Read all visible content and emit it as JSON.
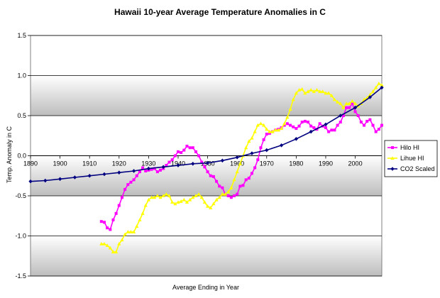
{
  "chart_data": {
    "type": "line",
    "title": "Hawaii 10-year Average Temperature Anomalies in C",
    "xlabel": "Average Ending in Year",
    "ylabel": "Temp. Anomaly in C",
    "xlim": [
      1890,
      2009
    ],
    "ylim": [
      -1.5,
      1.5
    ],
    "x_ticks": [
      "1890",
      "1900",
      "1910",
      "1920",
      "1930",
      "1940",
      "1950",
      "1960",
      "1970",
      "1980",
      "1990",
      "2000"
    ],
    "y_ticks": [
      "1.5",
      "1.0",
      "0.5",
      "0.0",
      "-0.5",
      "-1.0",
      "-1.5"
    ],
    "grid": "horizontal",
    "legend_position": "right",
    "series": [
      {
        "name": "Hilo HI",
        "color": "#ff00ff",
        "marker": "square",
        "x": [
          1914,
          1915,
          1916,
          1917,
          1918,
          1919,
          1920,
          1921,
          1922,
          1923,
          1924,
          1925,
          1926,
          1927,
          1928,
          1929,
          1930,
          1931,
          1932,
          1933,
          1934,
          1935,
          1936,
          1937,
          1938,
          1939,
          1940,
          1941,
          1942,
          1943,
          1944,
          1945,
          1946,
          1947,
          1948,
          1949,
          1950,
          1951,
          1952,
          1953,
          1954,
          1955,
          1956,
          1957,
          1958,
          1959,
          1960,
          1961,
          1962,
          1963,
          1964,
          1965,
          1966,
          1967,
          1968,
          1969,
          1970,
          1971,
          1972,
          1973,
          1974,
          1975,
          1976,
          1977,
          1978,
          1979,
          1980,
          1981,
          1982,
          1983,
          1984,
          1985,
          1986,
          1987,
          1988,
          1989,
          1990,
          1991,
          1992,
          1993,
          1994,
          1995,
          1996,
          1997,
          1998,
          1999,
          2000,
          2001,
          2002,
          2003,
          2004,
          2005,
          2006,
          2007,
          2008,
          2009
        ],
        "values": [
          -0.82,
          -0.83,
          -0.9,
          -0.92,
          -0.8,
          -0.72,
          -0.62,
          -0.52,
          -0.42,
          -0.36,
          -0.33,
          -0.3,
          -0.25,
          -0.2,
          -0.15,
          -0.19,
          -0.18,
          -0.17,
          -0.16,
          -0.2,
          -0.18,
          -0.16,
          -0.12,
          -0.08,
          -0.05,
          0.0,
          0.05,
          0.04,
          0.07,
          0.12,
          0.1,
          0.1,
          0.05,
          0.0,
          -0.08,
          -0.14,
          -0.2,
          -0.25,
          -0.26,
          -0.32,
          -0.38,
          -0.4,
          -0.48,
          -0.5,
          -0.52,
          -0.5,
          -0.48,
          -0.38,
          -0.37,
          -0.3,
          -0.28,
          -0.22,
          -0.15,
          -0.05,
          0.1,
          0.2,
          0.27,
          0.28,
          0.3,
          0.32,
          0.33,
          0.35,
          0.38,
          0.4,
          0.38,
          0.36,
          0.34,
          0.37,
          0.42,
          0.43,
          0.42,
          0.37,
          0.35,
          0.33,
          0.4,
          0.37,
          0.35,
          0.3,
          0.32,
          0.32,
          0.38,
          0.42,
          0.5,
          0.6,
          0.6,
          0.65,
          0.55,
          0.5,
          0.42,
          0.38,
          0.43,
          0.45,
          0.38,
          0.3,
          0.33,
          0.38
        ]
      },
      {
        "name": "Lihue HI",
        "color": "#ffff00",
        "marker": "triangle",
        "x": [
          1914,
          1915,
          1916,
          1917,
          1918,
          1919,
          1920,
          1921,
          1922,
          1923,
          1924,
          1925,
          1926,
          1927,
          1928,
          1929,
          1930,
          1931,
          1932,
          1933,
          1934,
          1935,
          1936,
          1937,
          1938,
          1939,
          1940,
          1941,
          1942,
          1943,
          1944,
          1945,
          1946,
          1947,
          1948,
          1949,
          1950,
          1951,
          1952,
          1953,
          1954,
          1955,
          1956,
          1957,
          1958,
          1959,
          1960,
          1961,
          1962,
          1963,
          1964,
          1965,
          1966,
          1967,
          1968,
          1969,
          1970,
          1971,
          1972,
          1973,
          1974,
          1975,
          1976,
          1977,
          1978,
          1979,
          1980,
          1981,
          1982,
          1983,
          1984,
          1985,
          1986,
          1987,
          1988,
          1989,
          1990,
          1991,
          1992,
          1993,
          1994,
          1995,
          1996,
          1997,
          1998,
          1999,
          2000,
          2001,
          2002,
          2003,
          2004,
          2005,
          2006,
          2007,
          2008,
          2009
        ],
        "values": [
          -1.1,
          -1.1,
          -1.12,
          -1.15,
          -1.2,
          -1.2,
          -1.1,
          -1.05,
          -0.98,
          -0.95,
          -0.95,
          -0.95,
          -0.88,
          -0.8,
          -0.72,
          -0.62,
          -0.55,
          -0.52,
          -0.52,
          -0.5,
          -0.52,
          -0.5,
          -0.48,
          -0.5,
          -0.58,
          -0.6,
          -0.58,
          -0.57,
          -0.55,
          -0.58,
          -0.55,
          -0.52,
          -0.5,
          -0.48,
          -0.52,
          -0.58,
          -0.63,
          -0.65,
          -0.6,
          -0.55,
          -0.52,
          -0.48,
          -0.48,
          -0.45,
          -0.4,
          -0.3,
          -0.2,
          -0.1,
          0.0,
          0.1,
          0.18,
          0.22,
          0.3,
          0.38,
          0.4,
          0.38,
          0.33,
          0.3,
          0.3,
          0.32,
          0.32,
          0.34,
          0.4,
          0.48,
          0.58,
          0.7,
          0.78,
          0.82,
          0.83,
          0.78,
          0.8,
          0.82,
          0.8,
          0.82,
          0.8,
          0.8,
          0.78,
          0.78,
          0.75,
          0.7,
          0.67,
          0.65,
          0.6,
          0.65,
          0.65,
          0.68,
          0.65,
          0.62,
          0.65,
          0.7,
          0.72,
          0.76,
          0.8,
          0.85,
          0.9,
          0.88
        ]
      },
      {
        "name": "CO2 Scaled",
        "color": "#000080",
        "marker": "diamond",
        "x": [
          1890,
          1895,
          1900,
          1905,
          1910,
          1915,
          1920,
          1925,
          1930,
          1935,
          1940,
          1945,
          1950,
          1955,
          1960,
          1965,
          1970,
          1975,
          1980,
          1985,
          1990,
          1995,
          2000,
          2005,
          2009
        ],
        "values": [
          -0.32,
          -0.31,
          -0.29,
          -0.27,
          -0.25,
          -0.23,
          -0.21,
          -0.19,
          -0.16,
          -0.14,
          -0.12,
          -0.1,
          -0.09,
          -0.06,
          -0.02,
          0.03,
          0.07,
          0.13,
          0.21,
          0.3,
          0.39,
          0.5,
          0.6,
          0.73,
          0.85
        ]
      }
    ]
  }
}
